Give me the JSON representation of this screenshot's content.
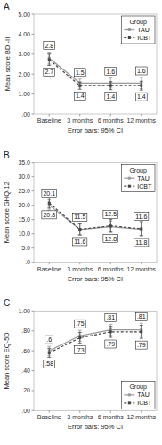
{
  "chart_data": [
    {
      "type": "line",
      "title": "A",
      "x_label": "Error bars: 95% CI",
      "y_label": "Mean score BDI-II",
      "categories": [
        "Baseline",
        "3 months",
        "6 months",
        "12 months"
      ],
      "series": [
        {
          "name": "TAU",
          "color": "#999999",
          "line_style": "solid",
          "marker": "square",
          "values": [
            2.8,
            1.55,
            1.55,
            1.55
          ],
          "errors": [
            0.3,
            0.2,
            0.25,
            0.28
          ],
          "value_labels": [
            "2.8",
            "1.5",
            "1.6",
            "1.6"
          ]
        },
        {
          "name": "ICBT",
          "color": "#444444",
          "line_style": "dashed",
          "marker": "square",
          "values": [
            2.72,
            1.42,
            1.42,
            1.42
          ],
          "errors": [
            0.28,
            0.18,
            0.2,
            0.22
          ],
          "value_labels": [
            "2.7",
            "1.4",
            "1.4",
            "1.4"
          ]
        }
      ],
      "ylim": [
        0,
        5.0
      ],
      "yticks": [
        {
          "value": 0,
          "label": ".00"
        },
        {
          "value": 1.0,
          "label": "1.00"
        },
        {
          "value": 2.0,
          "label": "2.00"
        },
        {
          "value": 3.0,
          "label": "3.00"
        },
        {
          "value": 4.0,
          "label": "4.00"
        },
        {
          "value": 5.0,
          "label": "5.00"
        }
      ],
      "data_labels": true,
      "grid": false,
      "legend": "upper right",
      "legend_title": "Group"
    },
    {
      "type": "line",
      "title": "B",
      "x_label": "Error bars: 95% CI",
      "y_label": "Mean score GHQ-12",
      "categories": [
        "Baseline",
        "3 months",
        "6 months",
        "12 months"
      ],
      "series": [
        {
          "name": "TAU",
          "color": "#999999",
          "line_style": "solid",
          "marker": "square",
          "values": [
            20.1,
            11.5,
            12.5,
            11.6
          ],
          "errors": [
            1.8,
            2.0,
            2.0,
            2.2
          ],
          "value_labels": [
            "20.1",
            "11.5",
            "12.5",
            "11.6"
          ]
        },
        {
          "name": "ICBT",
          "color": "#444444",
          "line_style": "dashed",
          "marker": "square",
          "values": [
            20.8,
            11.6,
            12.8,
            11.8
          ],
          "errors": [
            1.8,
            2.0,
            2.2,
            2.5
          ],
          "value_labels": [
            "20.8",
            "11.6",
            "12.8",
            "11.8"
          ]
        }
      ],
      "ylim": [
        0,
        35.0
      ],
      "yticks": [
        {
          "value": 0,
          "label": ".0"
        },
        {
          "value": 5.0,
          "label": "5.0"
        },
        {
          "value": 10.0,
          "label": "10.0"
        },
        {
          "value": 15.0,
          "label": "15.0"
        },
        {
          "value": 20.0,
          "label": "20.0"
        },
        {
          "value": 25.0,
          "label": "25.0"
        },
        {
          "value": 30.0,
          "label": "30.0"
        },
        {
          "value": 35.0,
          "label": "35.0"
        }
      ],
      "data_labels": true,
      "grid": false,
      "legend": "upper right",
      "legend_title": "Group"
    },
    {
      "type": "line",
      "title": "C",
      "x_label": "Error bars: 95% CI",
      "y_label": "Mean score EQ-5D",
      "categories": [
        "Baseline",
        "3 months",
        "6 months",
        "12 months"
      ],
      "series": [
        {
          "name": "TAU",
          "color": "#999999",
          "line_style": "solid",
          "marker": "square",
          "values": [
            0.6,
            0.75,
            0.81,
            0.81
          ],
          "errors": [
            0.045,
            0.055,
            0.055,
            0.065
          ],
          "value_labels": [
            ".6",
            ".75",
            ".81",
            ".81"
          ]
        },
        {
          "name": "ICBT",
          "color": "#444444",
          "line_style": "dashed",
          "marker": "square",
          "values": [
            0.58,
            0.73,
            0.79,
            0.79
          ],
          "errors": [
            0.045,
            0.055,
            0.055,
            0.065
          ],
          "value_labels": [
            ".58",
            ".73",
            ".79",
            ".79"
          ]
        }
      ],
      "ylim": [
        0,
        1.0
      ],
      "yticks": [
        {
          "value": 0,
          "label": ".00"
        },
        {
          "value": 0.2,
          "label": ".20"
        },
        {
          "value": 0.4,
          "label": ".40"
        },
        {
          "value": 0.6,
          "label": ".60"
        },
        {
          "value": 0.8,
          "label": ".80"
        },
        {
          "value": 1.0,
          "label": "1.00"
        }
      ],
      "data_labels": true,
      "grid": false,
      "legend": "lower right",
      "legend_title": "Group"
    }
  ]
}
